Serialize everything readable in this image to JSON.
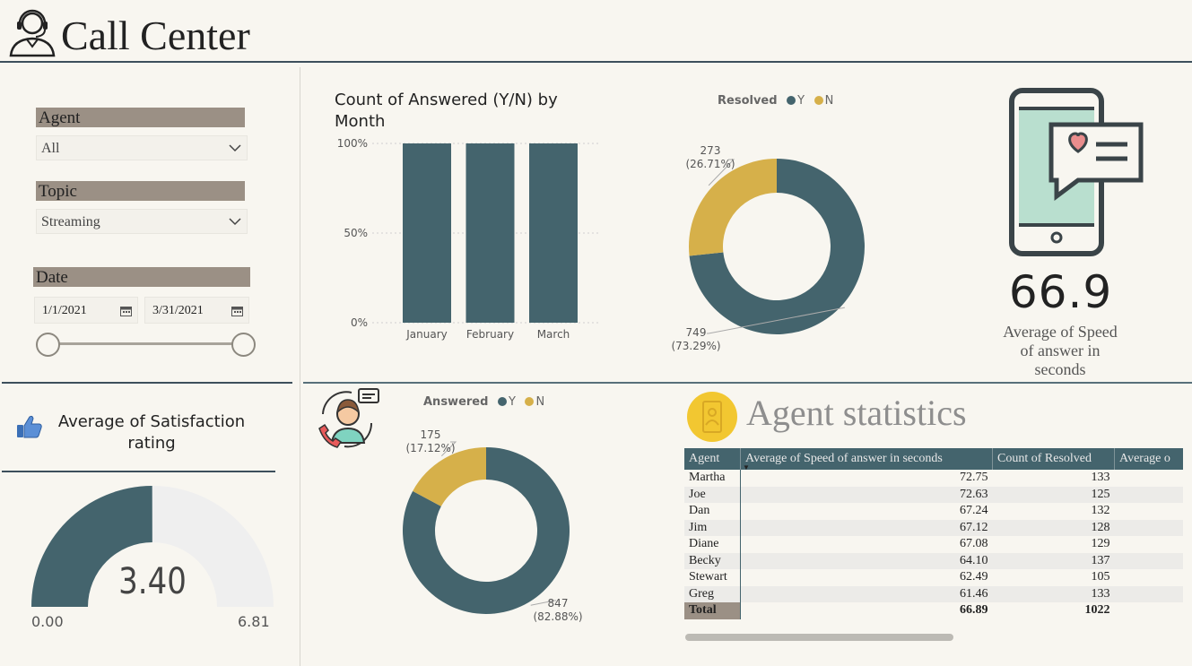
{
  "header": {
    "title": "Call Center"
  },
  "filters": {
    "agent": {
      "label": "Agent",
      "value": "All"
    },
    "topic": {
      "label": "Topic",
      "value": "Streaming"
    },
    "date": {
      "label": "Date",
      "start": "1/1/2021",
      "end": "3/31/2021"
    }
  },
  "satisfaction": {
    "title": "Average of Satisfaction rating",
    "value": "3.40",
    "min": "0.00",
    "max": "6.81"
  },
  "speed_kpi": {
    "value": "66.9",
    "caption": [
      "Average of Speed",
      "of answer in",
      "seconds"
    ]
  },
  "agent_stats": {
    "title": "Agent statistics",
    "columns": [
      "Agent",
      "Average of Speed of answer in seconds",
      "Count of Resolved",
      "Average o"
    ],
    "rows": [
      {
        "agent": "Martha",
        "speed": "72.75",
        "resolved": "133"
      },
      {
        "agent": "Joe",
        "speed": "72.63",
        "resolved": "125"
      },
      {
        "agent": "Dan",
        "speed": "67.24",
        "resolved": "132"
      },
      {
        "agent": "Jim",
        "speed": "67.12",
        "resolved": "128"
      },
      {
        "agent": "Diane",
        "speed": "67.08",
        "resolved": "129"
      },
      {
        "agent": "Becky",
        "speed": "64.10",
        "resolved": "137"
      },
      {
        "agent": "Stewart",
        "speed": "62.49",
        "resolved": "105"
      },
      {
        "agent": "Greg",
        "speed": "61.46",
        "resolved": "133"
      }
    ],
    "total": {
      "agent": "Total",
      "speed": "66.89",
      "resolved": "1022"
    }
  },
  "colors": {
    "primary": "#44646d",
    "accent": "#d6b04a",
    "gauge_bg": "#efefef"
  },
  "icons": {
    "header": "call-center-agent-icon",
    "phone": "phone-heart-message-icon",
    "support": "support-agent-icon",
    "thumb": "thumbs-up-icon",
    "agent_badge": "agent-badge-icon"
  },
  "chart_data": [
    {
      "type": "bar",
      "title": "Count of Answered (Y/N) by Month",
      "categories": [
        "January",
        "February",
        "March"
      ],
      "series": [
        {
          "name": "Y",
          "values": [
            100,
            100,
            100
          ]
        }
      ],
      "yticks": [
        "0%",
        "50%",
        "100%"
      ],
      "ylim": [
        0,
        100
      ],
      "grid": true
    },
    {
      "type": "pie",
      "title": "Resolved",
      "legend": [
        "Y",
        "N"
      ],
      "slices": [
        {
          "name": "Y",
          "value": 749,
          "label": "749",
          "pct": "(73.29%)"
        },
        {
          "name": "N",
          "value": 273,
          "label": "273",
          "pct": "(26.71%)"
        }
      ]
    },
    {
      "type": "pie",
      "title": "Answered",
      "legend": [
        "Y",
        "N"
      ],
      "slices": [
        {
          "name": "Y",
          "value": 847,
          "label": "847",
          "pct": "(82.88%)"
        },
        {
          "name": "N",
          "value": 175,
          "label": "175",
          "pct": "(17.12%)"
        }
      ]
    }
  ]
}
